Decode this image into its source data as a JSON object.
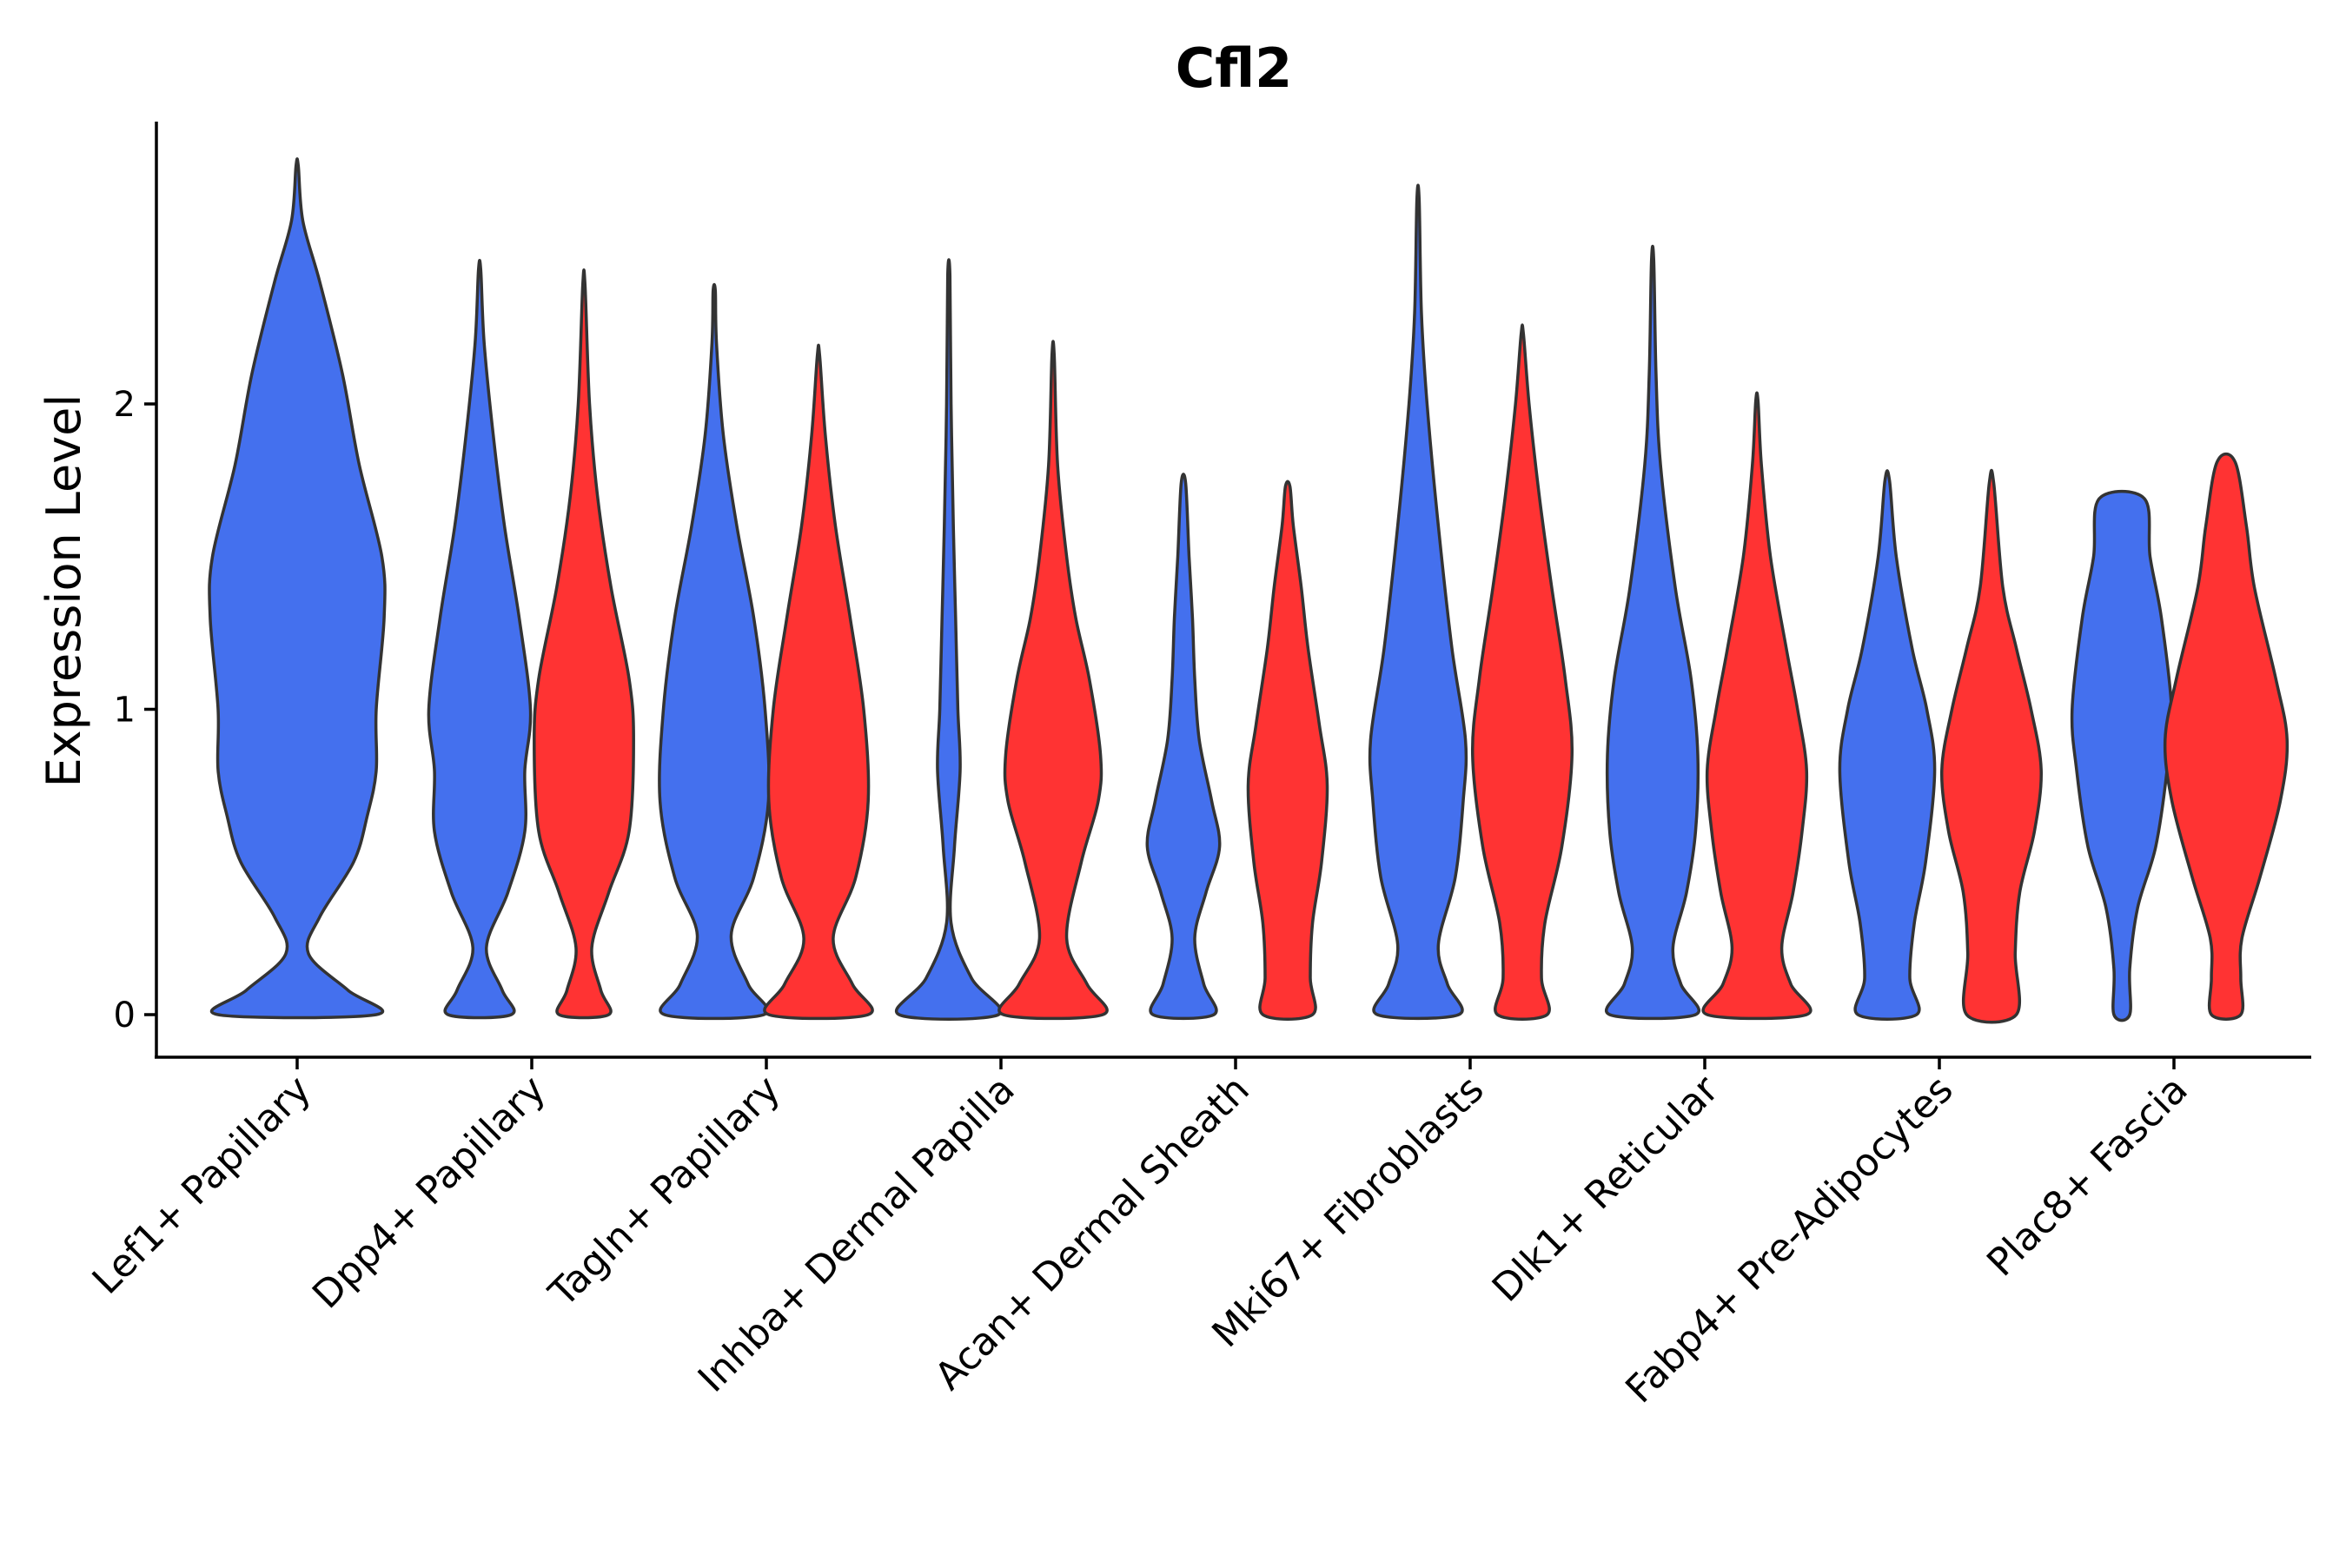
{
  "chart_data": {
    "type": "violin",
    "title": "Cfl2",
    "xlabel": "",
    "ylabel": "Expression Level",
    "ylim": [
      -0.14,
      2.95
    ],
    "yticks": [
      0,
      1,
      2
    ],
    "colors": {
      "group1": "#4470EE",
      "group2": "#FF3333",
      "outline": "#333333"
    },
    "categories": [
      "Lef1+ Papillary",
      "Dpp4+ Papillary",
      "Tagln+ Papillary",
      "Inhba+ Dermal Papilla",
      "Acan+ Dermal Sheath",
      "Mki67+ Fibroblasts",
      "Dlk1+ Reticular",
      "Fabp4+ Pre-Adipocytes",
      "Plac8+ Fascia"
    ],
    "violins": [
      {
        "category": "Lef1+ Papillary",
        "group": "group1",
        "max": 2.78,
        "profile": [
          [
            0,
            0.7
          ],
          [
            0.08,
            0.45
          ],
          [
            0.2,
            0.1
          ],
          [
            0.32,
            0.2
          ],
          [
            0.5,
            0.5
          ],
          [
            0.65,
            0.62
          ],
          [
            0.8,
            0.7
          ],
          [
            1.0,
            0.7
          ],
          [
            1.3,
            0.77
          ],
          [
            1.5,
            0.75
          ],
          [
            1.8,
            0.55
          ],
          [
            2.1,
            0.4
          ],
          [
            2.4,
            0.2
          ],
          [
            2.6,
            0.05
          ],
          [
            2.78,
            0.01
          ]
        ]
      },
      {
        "category": "Dpp4+ Papillary",
        "group": "group1",
        "max": 2.44,
        "profile": [
          [
            0,
            0.28
          ],
          [
            0.08,
            0.2
          ],
          [
            0.22,
            0.06
          ],
          [
            0.4,
            0.25
          ],
          [
            0.6,
            0.4
          ],
          [
            0.8,
            0.4
          ],
          [
            1.0,
            0.45
          ],
          [
            1.3,
            0.35
          ],
          [
            1.6,
            0.22
          ],
          [
            1.9,
            0.12
          ],
          [
            2.2,
            0.04
          ],
          [
            2.44,
            0.01
          ]
        ]
      },
      {
        "category": "Dpp4+ Papillary",
        "group": "group2",
        "max": 2.39,
        "profile": [
          [
            0,
            0.22
          ],
          [
            0.08,
            0.15
          ],
          [
            0.22,
            0.07
          ],
          [
            0.4,
            0.22
          ],
          [
            0.6,
            0.4
          ],
          [
            0.9,
            0.44
          ],
          [
            1.1,
            0.4
          ],
          [
            1.4,
            0.24
          ],
          [
            1.7,
            0.12
          ],
          [
            2.0,
            0.05
          ],
          [
            2.39,
            0.01
          ]
        ]
      },
      {
        "category": "Tagln+ Papillary",
        "group": "group1",
        "max": 2.37,
        "profile": [
          [
            0,
            0.44
          ],
          [
            0.1,
            0.3
          ],
          [
            0.26,
            0.15
          ],
          [
            0.45,
            0.35
          ],
          [
            0.7,
            0.48
          ],
          [
            1.0,
            0.45
          ],
          [
            1.3,
            0.35
          ],
          [
            1.6,
            0.2
          ],
          [
            1.9,
            0.08
          ],
          [
            2.2,
            0.02
          ],
          [
            2.37,
            0.01
          ]
        ]
      },
      {
        "category": "Tagln+ Papillary",
        "group": "group2",
        "max": 2.16,
        "profile": [
          [
            0,
            0.44
          ],
          [
            0.1,
            0.3
          ],
          [
            0.25,
            0.13
          ],
          [
            0.45,
            0.33
          ],
          [
            0.7,
            0.44
          ],
          [
            1.0,
            0.4
          ],
          [
            1.3,
            0.28
          ],
          [
            1.6,
            0.15
          ],
          [
            1.9,
            0.06
          ],
          [
            2.16,
            0.01
          ]
        ]
      },
      {
        "category": "Inhba+ Dermal Papilla",
        "group": "group1",
        "max": 2.42,
        "profile": [
          [
            0,
            0.44
          ],
          [
            0.12,
            0.2
          ],
          [
            0.3,
            0.02
          ],
          [
            0.55,
            0.05
          ],
          [
            0.8,
            0.1
          ],
          [
            1.0,
            0.08
          ],
          [
            1.3,
            0.06
          ],
          [
            1.6,
            0.04
          ],
          [
            2.0,
            0.02
          ],
          [
            2.42,
            0.01
          ]
        ]
      },
      {
        "category": "Inhba+ Dermal Papilla",
        "group": "group2",
        "max": 2.16,
        "profile": [
          [
            0,
            0.44
          ],
          [
            0.1,
            0.3
          ],
          [
            0.25,
            0.12
          ],
          [
            0.5,
            0.25
          ],
          [
            0.7,
            0.4
          ],
          [
            0.85,
            0.42
          ],
          [
            1.1,
            0.32
          ],
          [
            1.3,
            0.2
          ],
          [
            1.5,
            0.12
          ],
          [
            1.8,
            0.04
          ],
          [
            2.16,
            0.01
          ]
        ]
      },
      {
        "category": "Acan+ Dermal Sheath",
        "group": "group1",
        "max": 1.74,
        "profile": [
          [
            0,
            0.27
          ],
          [
            0.1,
            0.18
          ],
          [
            0.25,
            0.1
          ],
          [
            0.4,
            0.2
          ],
          [
            0.55,
            0.32
          ],
          [
            0.7,
            0.25
          ],
          [
            0.9,
            0.14
          ],
          [
            1.1,
            0.1
          ],
          [
            1.3,
            0.08
          ],
          [
            1.5,
            0.05
          ],
          [
            1.74,
            0.02
          ]
        ]
      },
      {
        "category": "Acan+ Dermal Sheath",
        "group": "group2",
        "max": 1.73,
        "profile": [
          [
            0,
            0.22
          ],
          [
            0.12,
            0.2
          ],
          [
            0.3,
            0.22
          ],
          [
            0.5,
            0.3
          ],
          [
            0.75,
            0.35
          ],
          [
            0.95,
            0.28
          ],
          [
            1.2,
            0.18
          ],
          [
            1.4,
            0.12
          ],
          [
            1.6,
            0.05
          ],
          [
            1.73,
            0.02
          ]
        ]
      },
      {
        "category": "Mki67+ Fibroblasts",
        "group": "group1",
        "max": 2.67,
        "profile": [
          [
            0,
            0.36
          ],
          [
            0.1,
            0.26
          ],
          [
            0.23,
            0.18
          ],
          [
            0.45,
            0.33
          ],
          [
            0.7,
            0.4
          ],
          [
            0.9,
            0.42
          ],
          [
            1.2,
            0.3
          ],
          [
            1.6,
            0.18
          ],
          [
            2.0,
            0.08
          ],
          [
            2.3,
            0.03
          ],
          [
            2.67,
            0.01
          ]
        ]
      },
      {
        "category": "Mki67+ Fibroblasts",
        "group": "group2",
        "max": 2.23,
        "profile": [
          [
            0,
            0.22
          ],
          [
            0.12,
            0.17
          ],
          [
            0.3,
            0.2
          ],
          [
            0.55,
            0.35
          ],
          [
            0.85,
            0.44
          ],
          [
            1.1,
            0.38
          ],
          [
            1.4,
            0.26
          ],
          [
            1.7,
            0.15
          ],
          [
            2.0,
            0.06
          ],
          [
            2.23,
            0.01
          ]
        ]
      },
      {
        "category": "Dlk1+ Reticular",
        "group": "group1",
        "max": 2.47,
        "profile": [
          [
            0,
            0.38
          ],
          [
            0.1,
            0.25
          ],
          [
            0.22,
            0.18
          ],
          [
            0.4,
            0.3
          ],
          [
            0.6,
            0.38
          ],
          [
            0.85,
            0.4
          ],
          [
            1.1,
            0.34
          ],
          [
            1.4,
            0.2
          ],
          [
            1.8,
            0.07
          ],
          [
            2.1,
            0.03
          ],
          [
            2.47,
            0.01
          ]
        ]
      },
      {
        "category": "Dlk1+ Reticular",
        "group": "group2",
        "max": 2.01,
        "profile": [
          [
            0,
            0.44
          ],
          [
            0.1,
            0.3
          ],
          [
            0.22,
            0.22
          ],
          [
            0.4,
            0.32
          ],
          [
            0.6,
            0.4
          ],
          [
            0.8,
            0.44
          ],
          [
            1.0,
            0.36
          ],
          [
            1.2,
            0.26
          ],
          [
            1.5,
            0.12
          ],
          [
            1.8,
            0.04
          ],
          [
            2.01,
            0.01
          ]
        ]
      },
      {
        "category": "Fabp4+ Pre-Adipocytes",
        "group": "group1",
        "max": 1.75,
        "profile": [
          [
            0,
            0.26
          ],
          [
            0.12,
            0.2
          ],
          [
            0.3,
            0.24
          ],
          [
            0.5,
            0.34
          ],
          [
            0.8,
            0.42
          ],
          [
            1.0,
            0.35
          ],
          [
            1.2,
            0.22
          ],
          [
            1.5,
            0.08
          ],
          [
            1.75,
            0.02
          ]
        ]
      },
      {
        "category": "Fabp4+ Pre-Adipocytes",
        "group": "group2",
        "max": 1.74,
        "profile": [
          [
            0,
            0.22
          ],
          [
            0.2,
            0.21
          ],
          [
            0.4,
            0.25
          ],
          [
            0.6,
            0.38
          ],
          [
            0.8,
            0.44
          ],
          [
            1.0,
            0.35
          ],
          [
            1.2,
            0.22
          ],
          [
            1.4,
            0.1
          ],
          [
            1.74,
            0.02
          ]
        ]
      },
      {
        "category": "Plac8+ Fascia",
        "group": "group1",
        "max": 1.69,
        "profile": [
          [
            0,
            0.07
          ],
          [
            0.15,
            0.07
          ],
          [
            0.35,
            0.14
          ],
          [
            0.55,
            0.3
          ],
          [
            0.8,
            0.4
          ],
          [
            1.0,
            0.44
          ],
          [
            1.3,
            0.35
          ],
          [
            1.5,
            0.25
          ],
          [
            1.69,
            0.2
          ]
        ]
      },
      {
        "category": "Plac8+ Fascia",
        "group": "group2",
        "max": 1.81,
        "profile": [
          [
            0,
            0.13
          ],
          [
            0.12,
            0.13
          ],
          [
            0.25,
            0.14
          ],
          [
            0.45,
            0.3
          ],
          [
            0.7,
            0.48
          ],
          [
            0.9,
            0.54
          ],
          [
            1.1,
            0.44
          ],
          [
            1.4,
            0.25
          ],
          [
            1.6,
            0.18
          ],
          [
            1.81,
            0.08
          ]
        ]
      }
    ]
  }
}
